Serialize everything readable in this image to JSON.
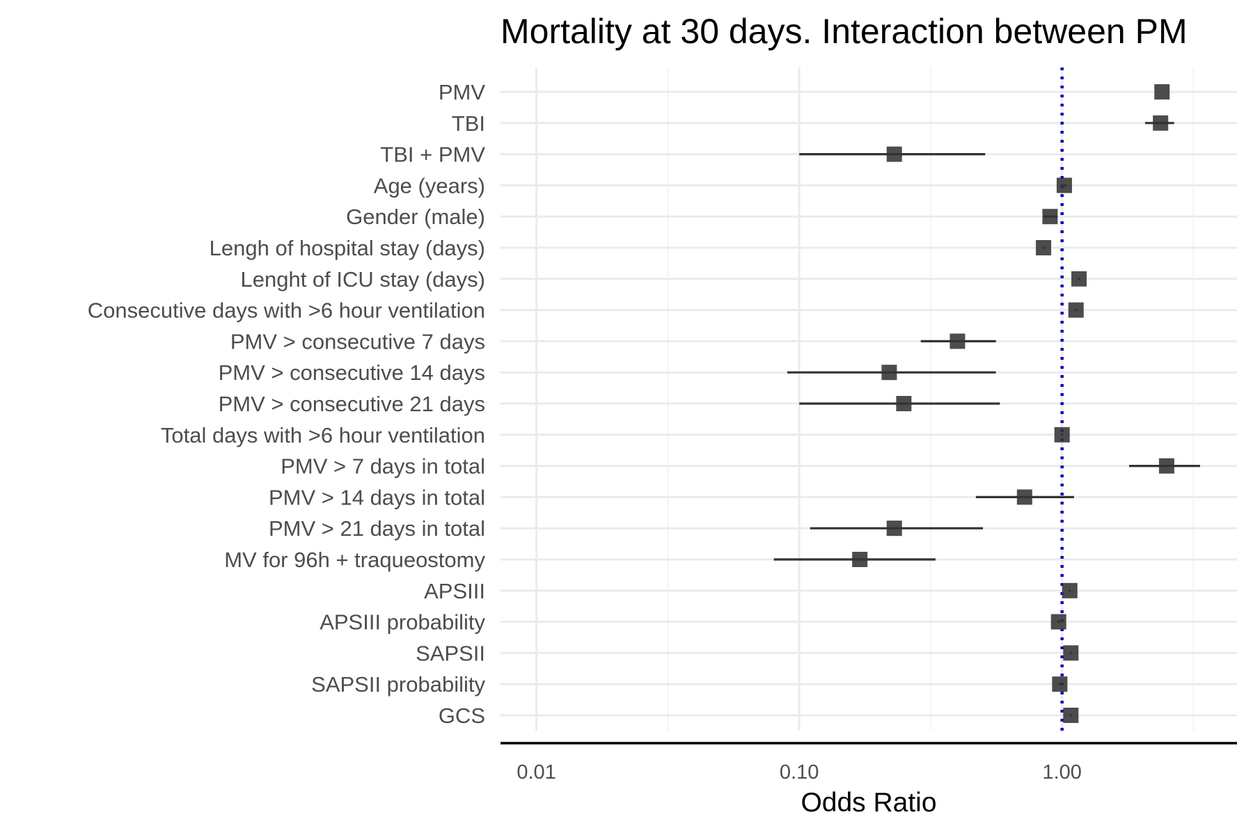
{
  "chart_data": {
    "type": "forest",
    "title": "Mortality at 30 days. Interaction between PM",
    "xlabel": "Odds Ratio",
    "ylabel": "",
    "x_scale": "log10",
    "xlim": [
      0.0073,
      4.63
    ],
    "x_major_ticks": [
      0.01,
      0.1,
      1.0
    ],
    "x_tick_labels": [
      "0.01",
      "0.10",
      "1.00"
    ],
    "x_minor_ticks": [
      0.0316,
      0.316,
      3.16
    ],
    "reference_line": {
      "x": 1.0,
      "style": "dotted",
      "color": "#0000cc"
    },
    "grid": true,
    "legend": "none",
    "point_color": "#333333",
    "rows": [
      {
        "label": "PMV",
        "or": 2.4,
        "lower": 2.4,
        "upper": 2.4
      },
      {
        "label": "TBI",
        "or": 2.37,
        "lower": 2.07,
        "upper": 2.67
      },
      {
        "label": "TBI + PMV",
        "or": 0.23,
        "lower": 0.1,
        "upper": 0.51
      },
      {
        "label": "Age (years)",
        "or": 1.02,
        "lower": 1.0,
        "upper": 1.04
      },
      {
        "label": "Gender (male)",
        "or": 0.9,
        "lower": 0.85,
        "upper": 0.96
      },
      {
        "label": "Lengh of hospital stay (days)",
        "or": 0.85,
        "lower": 0.84,
        "upper": 0.86
      },
      {
        "label": "Lenght of ICU stay (days)",
        "or": 1.16,
        "lower": 1.15,
        "upper": 1.17
      },
      {
        "label": "Consecutive days with >6 hour ventilation",
        "or": 1.13,
        "lower": 1.12,
        "upper": 1.14
      },
      {
        "label": "PMV > consecutive 7 days",
        "or": 0.4,
        "lower": 0.29,
        "upper": 0.56
      },
      {
        "label": "PMV > consecutive 14 days",
        "or": 0.22,
        "lower": 0.09,
        "upper": 0.56
      },
      {
        "label": "PMV > consecutive 21 days",
        "or": 0.25,
        "lower": 0.1,
        "upper": 0.58
      },
      {
        "label": "Total days with >6 hour ventilation",
        "or": 1.0,
        "lower": 0.99,
        "upper": 1.01
      },
      {
        "label": "PMV > 7 days in total",
        "or": 2.5,
        "lower": 1.8,
        "upper": 3.35
      },
      {
        "label": "PMV > 14 days in total",
        "or": 0.72,
        "lower": 0.47,
        "upper": 1.11
      },
      {
        "label": "PMV > 21 days in total",
        "or": 0.23,
        "lower": 0.11,
        "upper": 0.5
      },
      {
        "label": "MV for 96h + traqueostomy",
        "or": 0.17,
        "lower": 0.08,
        "upper": 0.33
      },
      {
        "label": "APSIII",
        "or": 1.07,
        "lower": 1.06,
        "upper": 1.08
      },
      {
        "label": "APSIII probability",
        "or": 0.97,
        "lower": 0.96,
        "upper": 0.98
      },
      {
        "label": "SAPSII",
        "or": 1.08,
        "lower": 1.07,
        "upper": 1.09
      },
      {
        "label": "SAPSII probability",
        "or": 0.98,
        "lower": 0.97,
        "upper": 0.99
      },
      {
        "label": "GCS",
        "or": 1.08,
        "lower": 1.07,
        "upper": 1.09
      }
    ]
  }
}
